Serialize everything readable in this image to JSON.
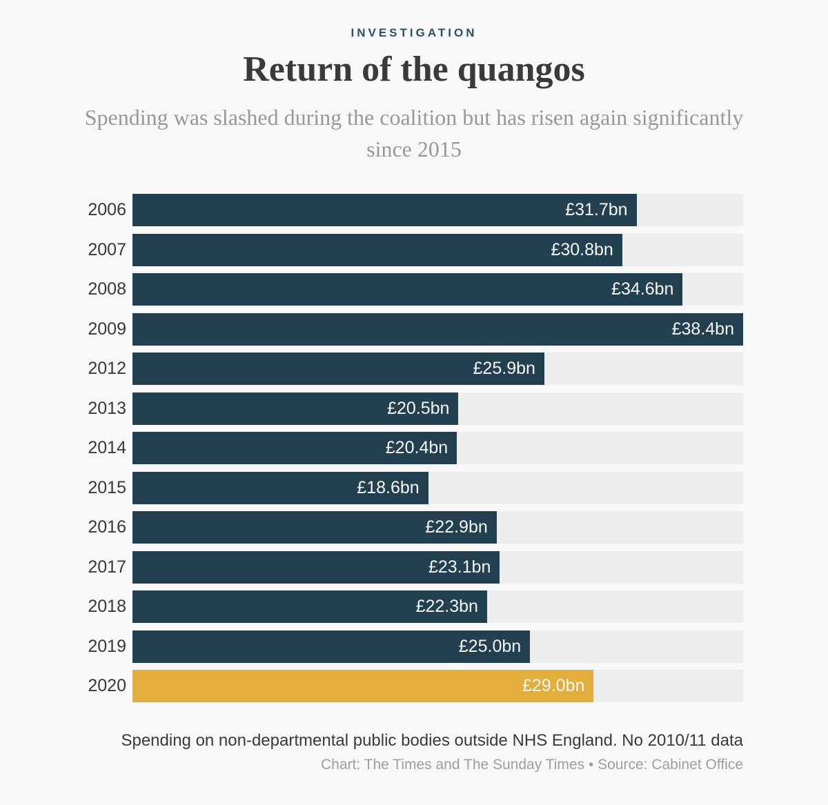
{
  "header": {
    "kicker": "INVESTIGATION",
    "title": "Return of the quangos",
    "subtitle": "Spending was slashed during the coalition but has risen again significantly since 2015"
  },
  "chart_data": {
    "type": "bar",
    "orientation": "horizontal",
    "title": "Return of the quangos",
    "subtitle": "Spending was slashed during the coalition but has risen again significantly since 2015",
    "categories": [
      "2006",
      "2007",
      "2008",
      "2009",
      "2012",
      "2013",
      "2014",
      "2015",
      "2016",
      "2017",
      "2018",
      "2019",
      "2020"
    ],
    "values": [
      31.7,
      30.8,
      34.6,
      38.4,
      25.9,
      20.5,
      20.4,
      18.6,
      22.9,
      23.1,
      22.3,
      25.0,
      29.0
    ],
    "value_labels": [
      "£31.7bn",
      "£30.8bn",
      "£34.6bn",
      "£38.4bn",
      "£25.9bn",
      "£20.5bn",
      "£20.4bn",
      "£18.6bn",
      "£22.9bn",
      "£23.1bn",
      "£22.3bn",
      "£25.0bn",
      "£29.0bn"
    ],
    "unit": "£bn",
    "xlim": [
      0,
      38.4
    ],
    "grid": false,
    "legend": "none",
    "highlight_category": "2020",
    "value_label_position": "inside-end",
    "note": "Spending on non-departmental public bodies outside NHS England. No 2010/11 data"
  },
  "footer": {
    "note": "Spending on non-departmental public bodies outside NHS England. No 2010/11 data",
    "credit": "Chart: The Times and The Sunday Times • Source: Cabinet Office"
  },
  "colors": {
    "background": "#f8f8f8",
    "bar": "#234050",
    "bar_highlight": "#e3ae3b",
    "bar_track": "#ededed",
    "kicker": "#2d4f63",
    "title": "#3a3a3a",
    "subtitle": "#989898",
    "year_label": "#383838",
    "value_label": "#f5f8f9",
    "note": "#3a3a3a",
    "credit": "#9e9e9e"
  }
}
